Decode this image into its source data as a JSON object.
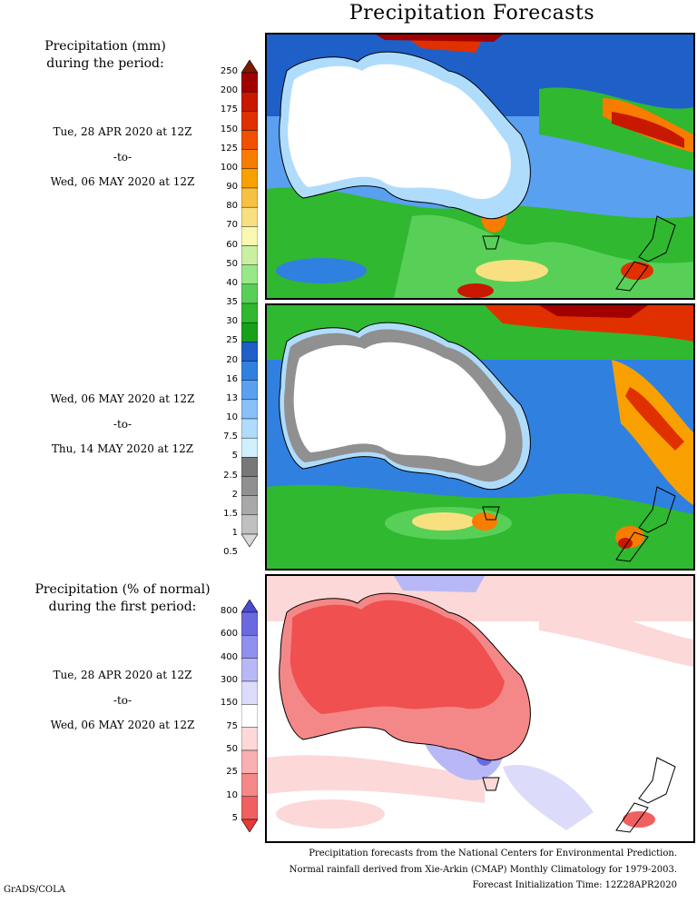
{
  "title": "Precipitation Forecasts",
  "top_section": {
    "heading_line1": "Precipitation (mm)",
    "heading_line2": "during the period:",
    "period1": {
      "start": "Tue, 28 APR 2020 at 12Z",
      "sep": "-to-",
      "end": "Wed, 06 MAY 2020 at 12Z"
    },
    "period2": {
      "start": "Wed, 06 MAY 2020 at 12Z",
      "sep": "-to-",
      "end": "Thu, 14 MAY 2020 at 12Z"
    },
    "scale_labels": [
      "250",
      "200",
      "175",
      "150",
      "125",
      "100",
      "90",
      "80",
      "70",
      "60",
      "50",
      "40",
      "35",
      "30",
      "25",
      "20",
      "16",
      "13",
      "10",
      "7.5",
      "5",
      "2.5",
      "2",
      "1.5",
      "1",
      "0.5"
    ],
    "scale_colors": [
      "#7a1a00",
      "#a00000",
      "#c81800",
      "#e03000",
      "#f05000",
      "#f87c00",
      "#f8a000",
      "#f8c040",
      "#f8e080",
      "#f8f8b0",
      "#c8f0a0",
      "#98e888",
      "#58d058",
      "#30b830",
      "#18a018",
      "#1e60c8",
      "#3080e0",
      "#5aa0f0",
      "#88c0f8",
      "#b0dcfc",
      "#d0eefc",
      "#787878",
      "#909090",
      "#a8a8a8",
      "#c0c0c0",
      "#d8d8d8"
    ]
  },
  "bottom_section": {
    "heading_line1": "Precipitation (% of normal)",
    "heading_line2": "during the first period:",
    "period": {
      "start": "Tue, 28 APR 2020 at 12Z",
      "sep": "-to-",
      "end": "Wed, 06 MAY 2020 at 12Z"
    },
    "scale_labels": [
      "800",
      "600",
      "400",
      "300",
      "150",
      "75",
      "50",
      "25",
      "10",
      "5"
    ],
    "scale_colors": [
      "#4a4ad0",
      "#6a6ae0",
      "#9090ee",
      "#b8b8f6",
      "#dcdcfa",
      "#ffffff",
      "#fcd8d8",
      "#f8b0b0",
      "#f48888",
      "#f06060",
      "#e83838"
    ]
  },
  "footer": {
    "line1": "Precipitation forecasts from the National Centers for Environmental Prediction.",
    "line2": "Normal rainfall derived from Xie-Arkin (CMAP) Monthly Climatology for 1979-2003.",
    "line3": "Forecast Initialization Time: 12Z28APR2020"
  },
  "credit": "GrADS/COLA"
}
